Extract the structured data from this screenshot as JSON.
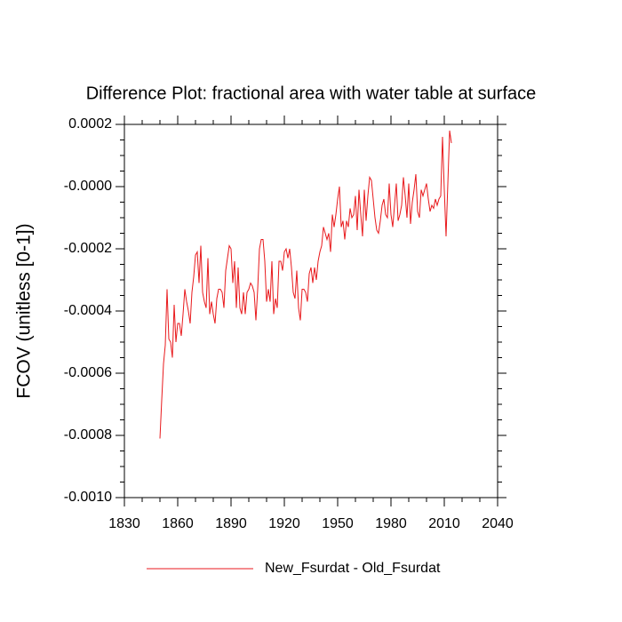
{
  "chart_data": {
    "type": "line",
    "title": "Difference Plot: fractional area with water table at surface",
    "y_label": "FCOV  (unitless [0-1])",
    "xlim": [
      1830,
      2040
    ],
    "xticks": [
      1830,
      1860,
      1890,
      1920,
      1950,
      1980,
      2010,
      2040
    ],
    "ylim": [
      -0.001,
      0.0002
    ],
    "yticks": [
      {
        "value": 0.0002,
        "label": "0.0002"
      },
      {
        "value": 0,
        "label": "-0.0000"
      },
      {
        "value": -0.0002,
        "label": "-0.0002"
      },
      {
        "value": -0.0004,
        "label": "-0.0004"
      },
      {
        "value": -0.0006,
        "label": "-0.0006"
      },
      {
        "value": -0.0008,
        "label": "-0.0008"
      },
      {
        "value": -0.001,
        "label": "-0.0010"
      }
    ],
    "x": [
      1850,
      1851,
      1852,
      1853,
      1854,
      1855,
      1856,
      1857,
      1858,
      1859,
      1860,
      1861,
      1862,
      1863,
      1864,
      1865,
      1866,
      1867,
      1868,
      1869,
      1870,
      1871,
      1872,
      1873,
      1874,
      1875,
      1876,
      1877,
      1878,
      1879,
      1880,
      1881,
      1882,
      1883,
      1884,
      1885,
      1886,
      1887,
      1888,
      1889,
      1890,
      1891,
      1892,
      1893,
      1894,
      1895,
      1896,
      1897,
      1898,
      1899,
      1900,
      1901,
      1902,
      1903,
      1904,
      1905,
      1906,
      1907,
      1908,
      1909,
      1910,
      1911,
      1912,
      1913,
      1914,
      1915,
      1916,
      1917,
      1918,
      1919,
      1920,
      1921,
      1922,
      1923,
      1924,
      1925,
      1926,
      1927,
      1928,
      1929,
      1930,
      1931,
      1932,
      1933,
      1934,
      1935,
      1936,
      1937,
      1938,
      1939,
      1940,
      1941,
      1942,
      1943,
      1944,
      1945,
      1946,
      1947,
      1948,
      1949,
      1950,
      1951,
      1952,
      1953,
      1954,
      1955,
      1956,
      1957,
      1958,
      1959,
      1960,
      1961,
      1962,
      1963,
      1964,
      1965,
      1966,
      1967,
      1968,
      1969,
      1970,
      1971,
      1972,
      1973,
      1974,
      1975,
      1976,
      1977,
      1978,
      1979,
      1980,
      1981,
      1982,
      1983,
      1984,
      1985,
      1986,
      1987,
      1988,
      1989,
      1990,
      1991,
      1992,
      1993,
      1994,
      1995,
      1996,
      1997,
      1998,
      1999,
      2000,
      2001,
      2002,
      2003,
      2004,
      2005,
      2006,
      2007,
      2008,
      2009,
      2010,
      2011,
      2012,
      2013,
      2014
    ],
    "series": [
      {
        "name": "New_Fsurdat - Old_Fsurdat",
        "color": "#e8191c",
        "values": [
          -0.00081,
          -0.000686,
          -0.00057,
          -0.00051,
          -0.00033,
          -0.00049,
          -0.0005,
          -0.00055,
          -0.00038,
          -0.0005,
          -0.00044,
          -0.00044,
          -0.00048,
          -0.00041,
          -0.00033,
          -0.00037,
          -0.0004,
          -0.00044,
          -0.00034,
          -0.00029,
          -0.00022,
          -0.00021,
          -0.00031,
          -0.00019,
          -0.00034,
          -0.00037,
          -0.00039,
          -0.00023,
          -0.00041,
          -0.00037,
          -0.00041,
          -0.00044,
          -0.00036,
          -0.00033,
          -0.00033,
          -0.00034,
          -0.00039,
          -0.00027,
          -0.00023,
          -0.00019,
          -0.0002,
          -0.00031,
          -0.00024,
          -0.00039,
          -0.00026,
          -0.00039,
          -0.00041,
          -0.00034,
          -0.00041,
          -0.00034,
          -0.00033,
          -0.00031,
          -0.00032,
          -0.00034,
          -0.00043,
          -0.00033,
          -0.0002,
          -0.00017,
          -0.00017,
          -0.00024,
          -0.00037,
          -0.00033,
          -0.00037,
          -0.00024,
          -0.00041,
          -0.00036,
          -0.00039,
          -0.00024,
          -0.00024,
          -0.00027,
          -0.00021,
          -0.0002,
          -0.00023,
          -0.0002,
          -0.00026,
          -0.00034,
          -0.00036,
          -0.00027,
          -0.00039,
          -0.00043,
          -0.00033,
          -0.00033,
          -0.00034,
          -0.00037,
          -0.00028,
          -0.00026,
          -0.00031,
          -0.00026,
          -0.0003,
          -0.00024,
          -0.00021,
          -0.00019,
          -0.00013,
          -0.00015,
          -0.00017,
          -0.00015,
          -0.00021,
          -9e-05,
          -0.00013,
          -9e-05,
          -4e-05,
          0,
          -0.00013,
          -0.00011,
          -0.00017,
          -0.00011,
          -0.00013,
          -7e-05,
          -0.0001,
          -9e-05,
          -3e-05,
          -0.00014,
          -1e-05,
          -9e-05,
          -0.00016,
          -1e-05,
          -0.00011,
          -3e-05,
          3e-05,
          2e-05,
          -4e-05,
          -0.0001,
          -0.00014,
          -0.00015,
          -0.00011,
          -6e-05,
          -4e-05,
          -9e-05,
          -0.0001,
          1e-05,
          -9e-05,
          -0.00013,
          -6e-05,
          1e-05,
          -0.00011,
          -9e-05,
          -6e-05,
          3e-05,
          -3e-05,
          -0.0001,
          1e-05,
          -0.00012,
          -5e-05,
          -1e-05,
          4e-05,
          -8e-05,
          -0.0001,
          -1e-05,
          -3e-05,
          -1e-05,
          1e-05,
          -4e-05,
          -8e-05,
          -6e-05,
          -7e-05,
          -4e-05,
          -6e-05,
          -4e-05,
          -3e-05,
          0.00016,
          -1e-05,
          -0.00016,
          1e-05,
          0.00018,
          0.00014
        ]
      }
    ]
  }
}
